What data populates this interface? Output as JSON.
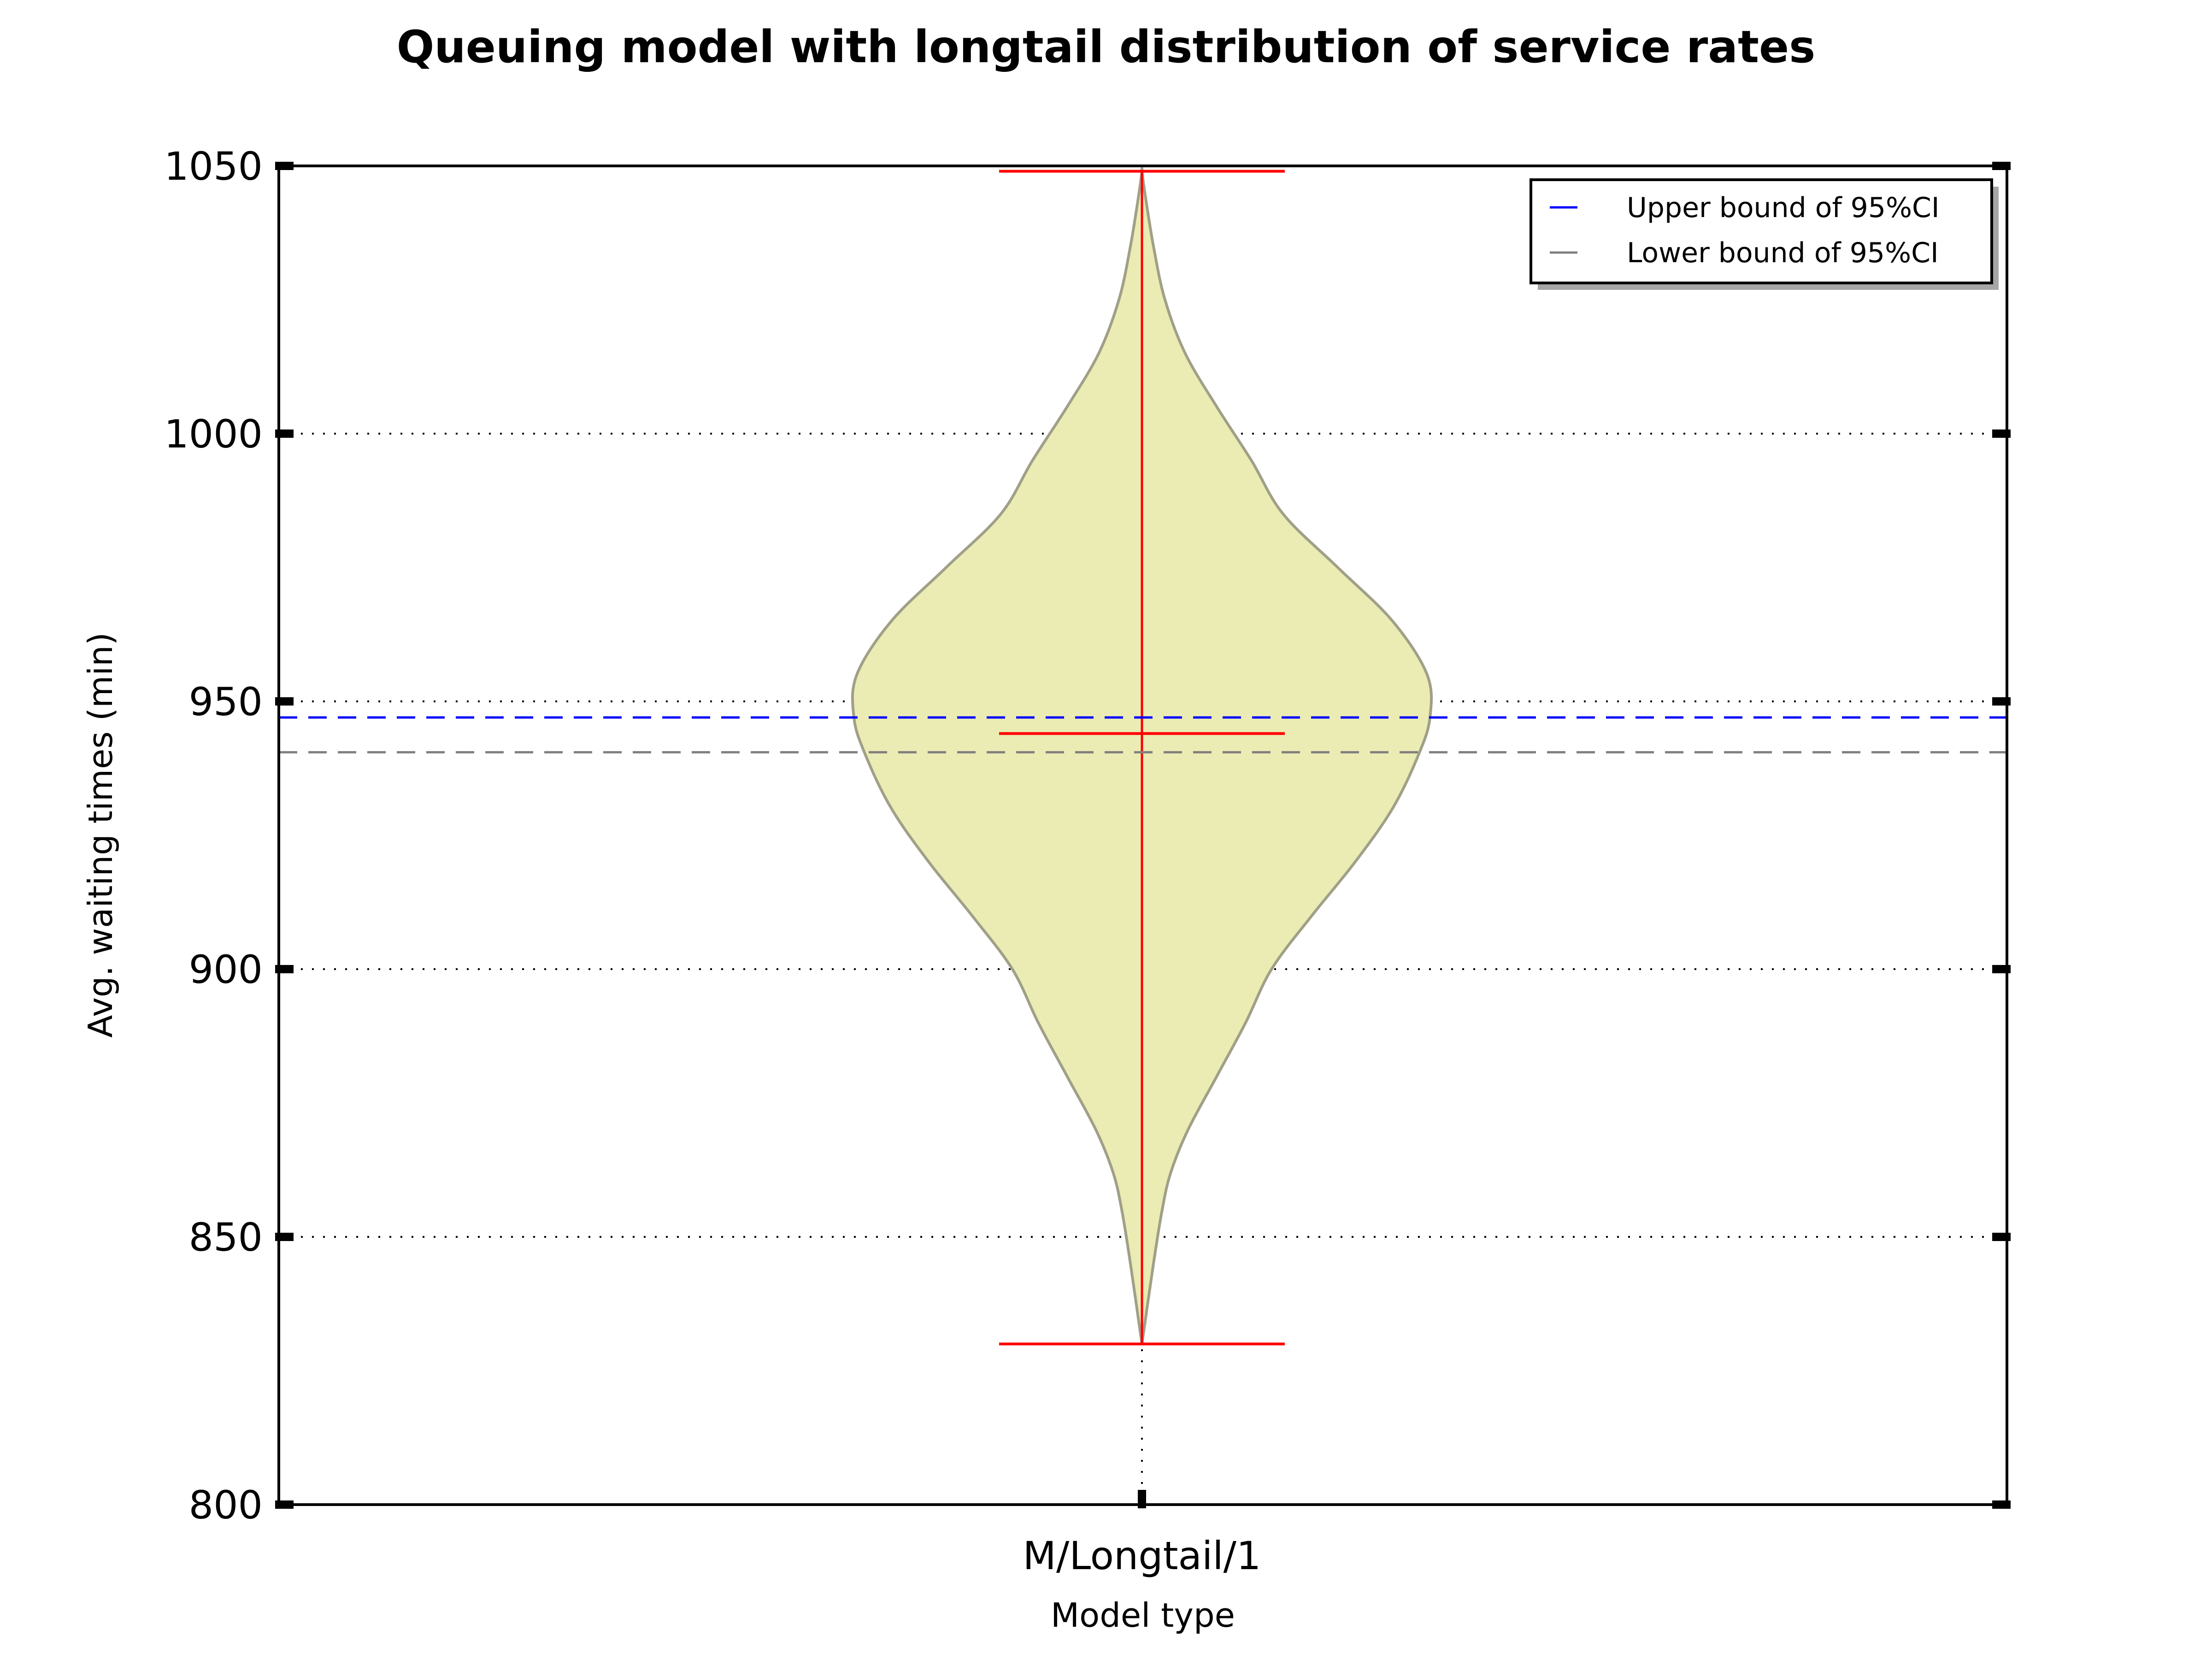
{
  "chart_data": {
    "type": "violin",
    "title": "Queuing model with longtail distribution of service rates",
    "xlabel": "Model type",
    "ylabel": "Avg. waiting times (min)",
    "categories": [
      "M/Longtail/1"
    ],
    "ylim": [
      800,
      1050
    ],
    "yticks": [
      800,
      850,
      900,
      950,
      1000,
      1050
    ],
    "grid": true,
    "legend": {
      "placement": "top-right",
      "entries": [
        {
          "label": "Upper bound of 95%CI",
          "color": "#0000ff",
          "style": "dashed"
        },
        {
          "label": "Lower bound of 95%CI",
          "color": "#808080",
          "style": "dashed"
        }
      ]
    },
    "violin": {
      "min": 830,
      "max": 1049,
      "mean": 944,
      "fill_color": "#ebebb4",
      "edge_color": "#a0a088",
      "stat_color": "#ff0000",
      "density_profile": [
        [
          830,
          0.0
        ],
        [
          845,
          0.04
        ],
        [
          855,
          0.07
        ],
        [
          862,
          0.1
        ],
        [
          870,
          0.16
        ],
        [
          880,
          0.26
        ],
        [
          890,
          0.36
        ],
        [
          900,
          0.45
        ],
        [
          910,
          0.59
        ],
        [
          920,
          0.74
        ],
        [
          930,
          0.87
        ],
        [
          940,
          0.96
        ],
        [
          947,
          1.0
        ],
        [
          955,
          0.99
        ],
        [
          965,
          0.87
        ],
        [
          975,
          0.68
        ],
        [
          985,
          0.49
        ],
        [
          995,
          0.38
        ],
        [
          1005,
          0.26
        ],
        [
          1015,
          0.15
        ],
        [
          1025,
          0.08
        ],
        [
          1035,
          0.04
        ],
        [
          1045,
          0.01
        ],
        [
          1049,
          0.0
        ]
      ]
    },
    "reference_lines": [
      {
        "name": "Upper bound of 95%CI",
        "y": 947,
        "color": "#0000ff"
      },
      {
        "name": "Lower bound of 95%CI",
        "y": 940.5,
        "color": "#808080"
      }
    ]
  }
}
